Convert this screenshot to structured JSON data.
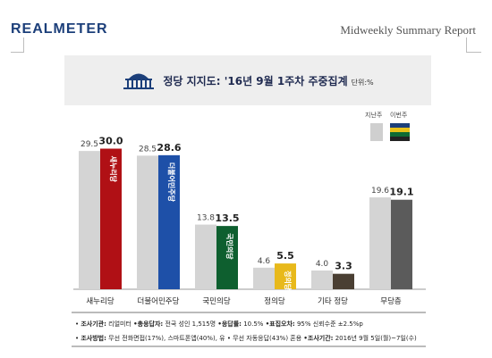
{
  "header": {
    "brand": "REALMETER",
    "report": "Midweekly  Summary  Report"
  },
  "card": {
    "title": "정당 지지도: '16년 9월 1주차 주중집계",
    "unit": "단위:%"
  },
  "legend": {
    "prev_label": "지난주",
    "curr_label": "이번주",
    "curr_colors": [
      "#1c3f7a",
      "#e8c21a",
      "#0e6b34",
      "#222222"
    ]
  },
  "chart_data": {
    "type": "bar",
    "categories": [
      "새누리당",
      "더불어민주당",
      "국민의당",
      "정의당",
      "기타 정당",
      "무당층"
    ],
    "series": [
      {
        "name": "지난주",
        "values": [
          29.5,
          28.5,
          13.8,
          4.6,
          4.0,
          19.6
        ],
        "color": "#d4d4d4"
      },
      {
        "name": "이번주",
        "values": [
          30.0,
          28.6,
          13.5,
          5.5,
          3.3,
          19.1
        ],
        "colors": [
          "#b01015",
          "#1e50a8",
          "#0e5f2f",
          "#e8b91b",
          "#4a3f33",
          "#5b5b5b"
        ]
      }
    ],
    "bar_logo_text": [
      "새누리당",
      "더불어민주당",
      "국민의당",
      "정의당",
      "",
      ""
    ],
    "ylim": [
      0,
      32
    ]
  },
  "footer": {
    "line1_k1": "조사기관:",
    "line1_v1": "리얼미터",
    "line1_k2": "•총응답자:",
    "line1_v2": "전국 성인 1,515명",
    "line1_k3": "•응답률:",
    "line1_v3": "10.5%",
    "line1_k4": "•표집오차:",
    "line1_v4": "95% 신뢰수준 ±2.5%p",
    "line2_k1": "조사방법:",
    "line2_v1": "무선 전화면접(17%), 스마트폰앱(40%), 유 • 무선 자동응답(43%) 혼용",
    "line2_k2": "•조사기간:",
    "line2_v2": "2016년 9월 5일(월)~7일(수)"
  }
}
